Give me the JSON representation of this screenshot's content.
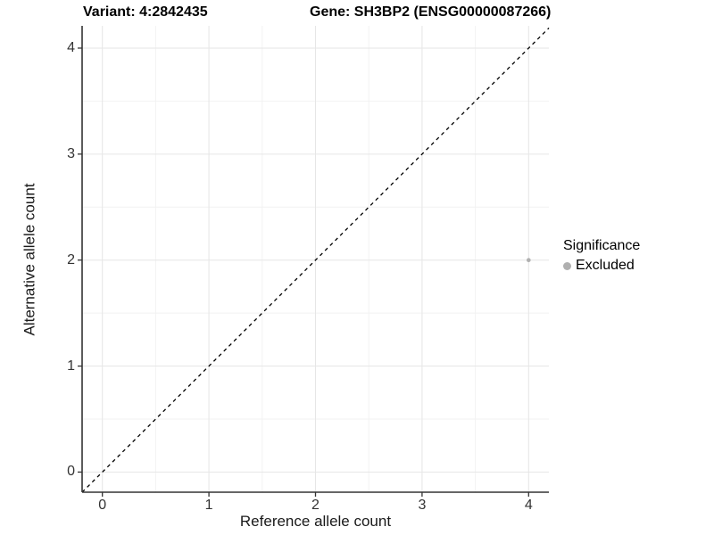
{
  "figure": {
    "title_left": "Variant: 4:2842435",
    "title_right": "Gene: SH3BP2 (ENSG00000087266)"
  },
  "chart_data": {
    "type": "scatter",
    "title": "Variant: 4:2842435   Gene: SH3BP2 (ENSG00000087266)",
    "xlabel": "Reference allele count",
    "ylabel": "Alternative allele count",
    "xlim": [
      -0.19,
      4.19
    ],
    "ylim": [
      -0.19,
      4.21
    ],
    "x_ticks": [
      0,
      1,
      2,
      3,
      4
    ],
    "y_ticks": [
      0,
      1,
      2,
      3,
      4
    ],
    "x_minor_ticks": [
      0.5,
      1.5,
      2.5,
      3.5
    ],
    "y_minor_ticks": [
      0.5,
      1.5,
      2.5,
      3.5
    ],
    "grid": true,
    "reference_line": {
      "slope": 1,
      "intercept": 0,
      "style": "dashed",
      "color": "#000000"
    },
    "series": [
      {
        "name": "Excluded",
        "color": "#b0b0b0",
        "points": [
          {
            "x": 4,
            "y": 2
          }
        ]
      }
    ],
    "legend": {
      "title": "Significance",
      "position": "right",
      "items": [
        {
          "label": "Excluded",
          "color": "#b0b0b0"
        }
      ]
    },
    "colors": {
      "grid_major": "#e6e6e6",
      "grid_minor": "#f2f2f2",
      "axis_line": "#333333",
      "tick_color": "#333333",
      "tick_label": "#333333"
    }
  }
}
